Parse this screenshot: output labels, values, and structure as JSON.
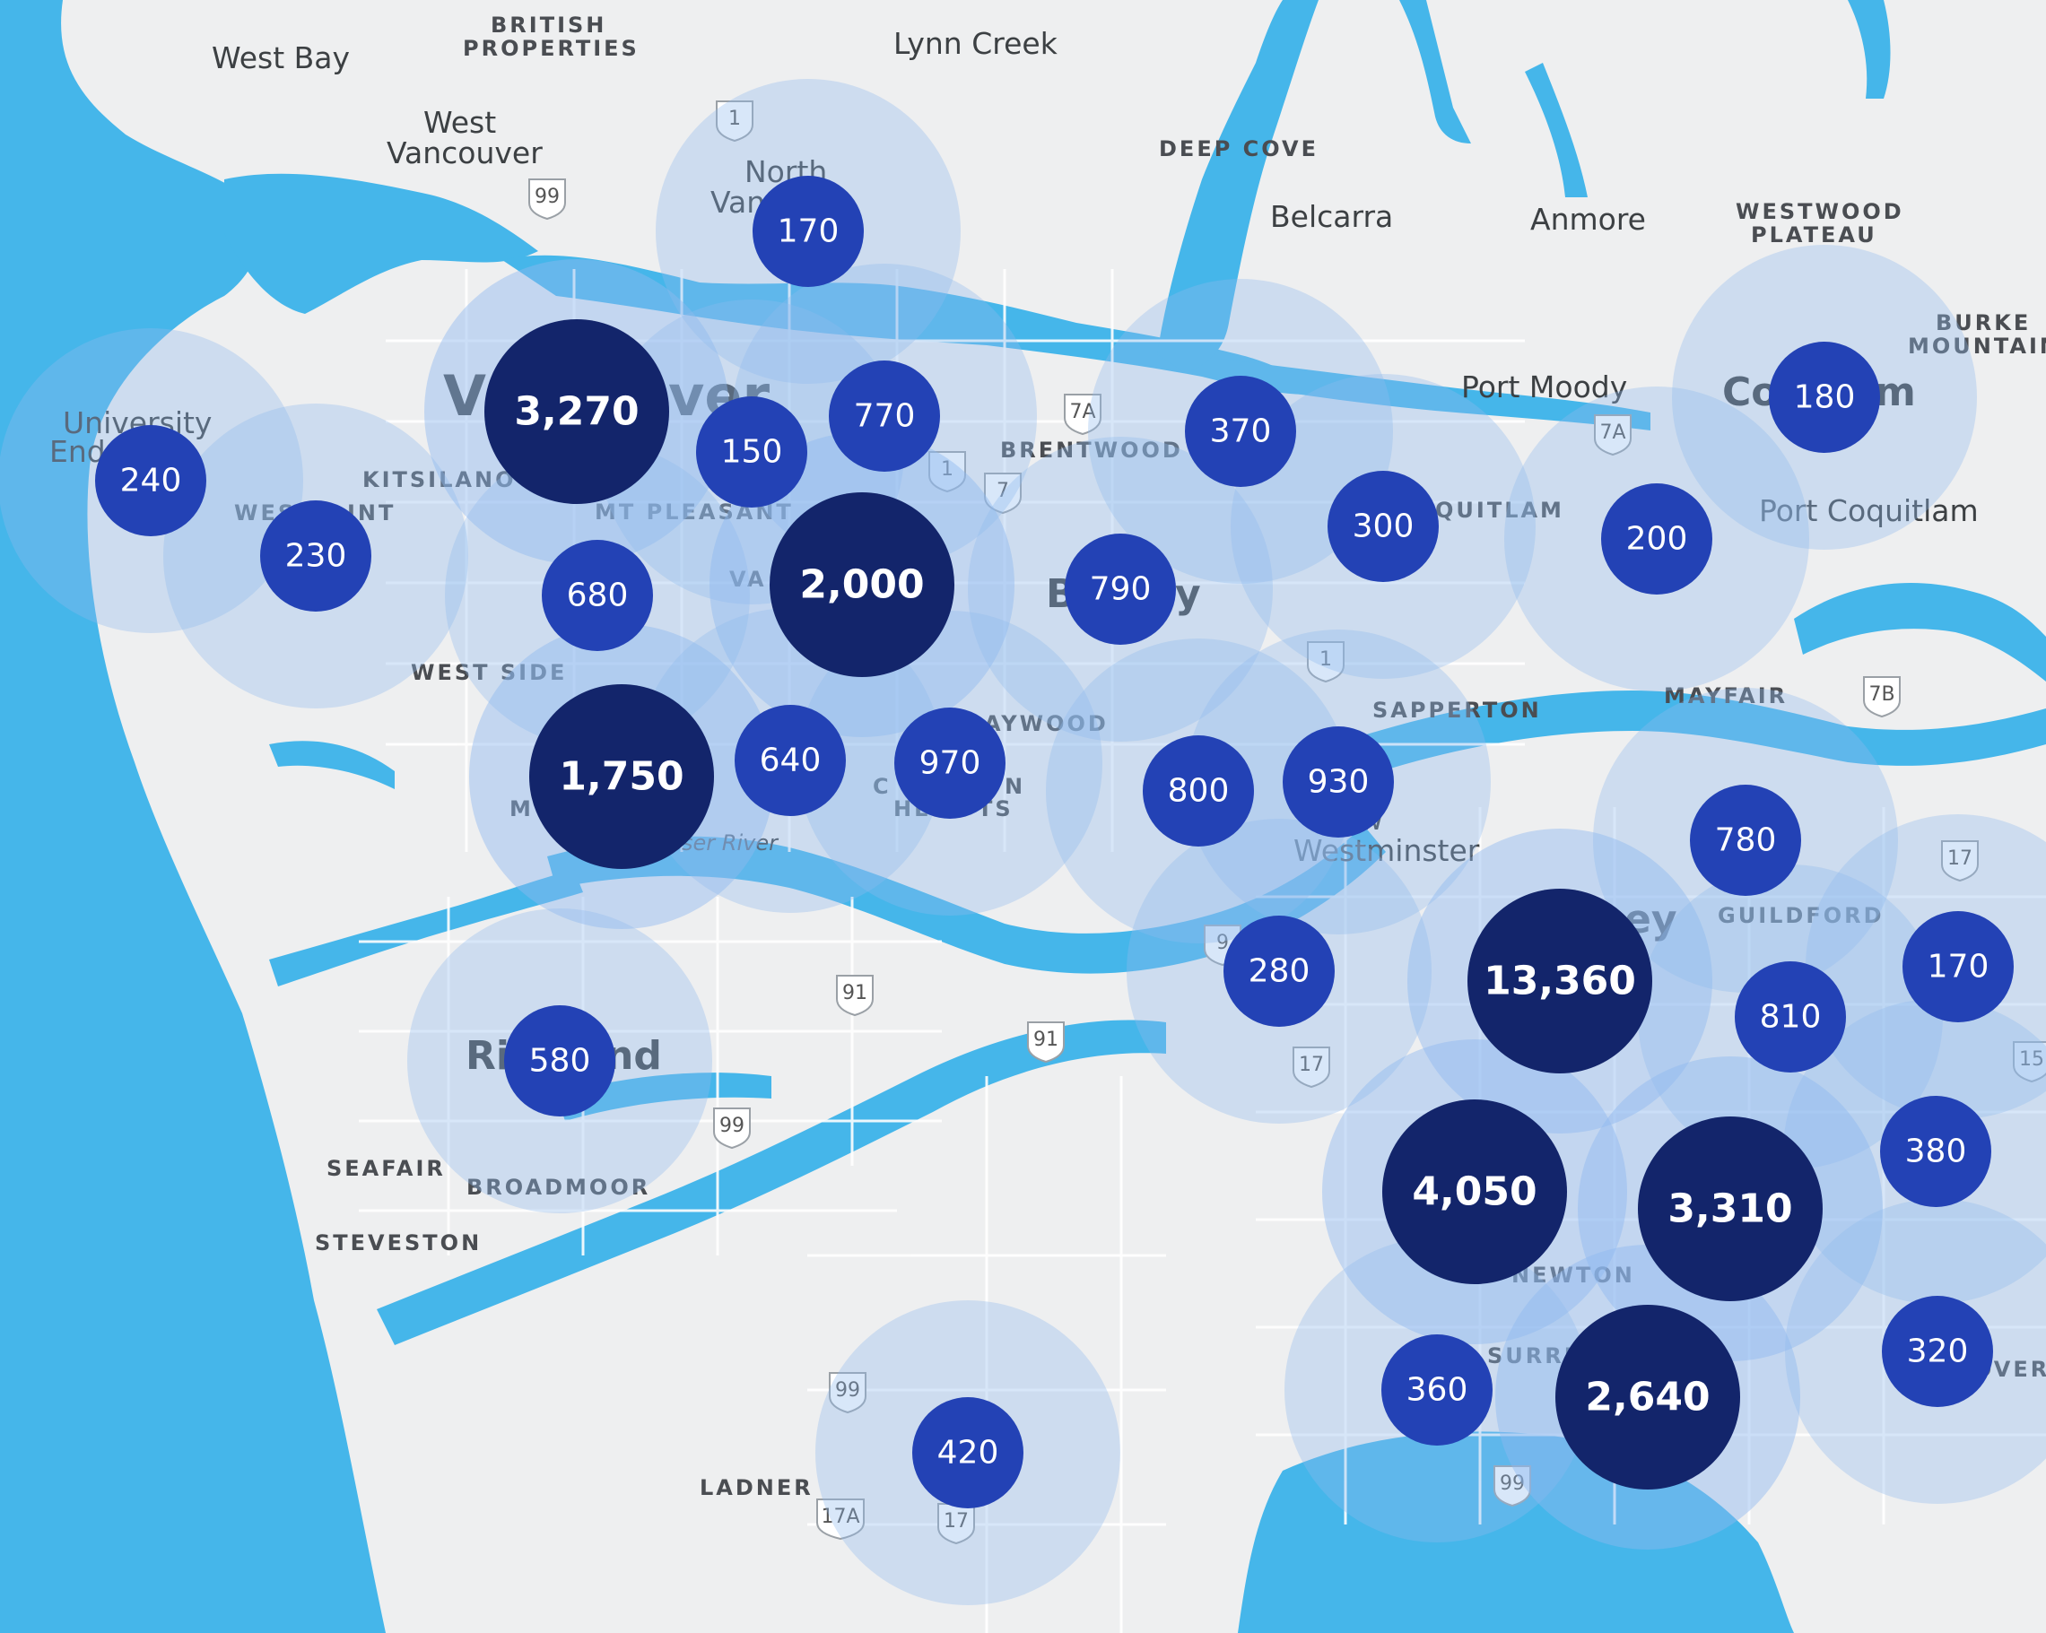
{
  "colors": {
    "land": "#eeeff0",
    "water": "#45b6ea",
    "halo": "#8fb9ef",
    "cluster_small": "#2342b5",
    "cluster_large": "#13256b",
    "text": "#ffffff"
  },
  "labels": [
    {
      "id": "west-bay",
      "text": "West Bay",
      "kind": "city"
    },
    {
      "id": "british-properties",
      "text": "BRITISH",
      "kind": "hood"
    },
    {
      "id": "british-properties-2",
      "text": "PROPERTIES",
      "kind": "hood"
    },
    {
      "id": "lynn-creek",
      "text": "Lynn Creek",
      "kind": "city"
    },
    {
      "id": "west-vancouver",
      "text": "West",
      "kind": "city"
    },
    {
      "id": "west-vancouver-2",
      "text": "Vancouver",
      "kind": "city"
    },
    {
      "id": "north-van",
      "text": "North",
      "kind": "city"
    },
    {
      "id": "north-van-2",
      "text": "Van",
      "kind": "city"
    },
    {
      "id": "deep-cove",
      "text": "DEEP COVE",
      "kind": "hood"
    },
    {
      "id": "belcarra",
      "text": "Belcarra",
      "kind": "city"
    },
    {
      "id": "anmore",
      "text": "Anmore",
      "kind": "city"
    },
    {
      "id": "westwood",
      "text": "WESTWOOD",
      "kind": "hood"
    },
    {
      "id": "westwood-2",
      "text": "PLATEAU",
      "kind": "hood"
    },
    {
      "id": "burke",
      "text": "BURKE",
      "kind": "hood"
    },
    {
      "id": "burke-2",
      "text": "MOUNTAIN",
      "kind": "hood"
    },
    {
      "id": "port-moody",
      "text": "Port Moody",
      "kind": "city"
    },
    {
      "id": "coquitlam",
      "text": "Co",
      "kind": "bigcity"
    },
    {
      "id": "coquitlam-2",
      "text": "m",
      "kind": "bigcity"
    },
    {
      "id": "port-coquitlam",
      "text": "Port Coquitlam",
      "kind": "city"
    },
    {
      "id": "quitlam",
      "text": "QUITLAM",
      "kind": "hood"
    },
    {
      "id": "university",
      "text": "University",
      "kind": "city"
    },
    {
      "id": "university-2",
      "text": "End",
      "kind": "city"
    },
    {
      "id": "vancouver",
      "text": "V",
      "kind": "bigcity"
    },
    {
      "id": "vancouver-2",
      "text": "ver",
      "kind": "bigcity"
    },
    {
      "id": "kitsilano",
      "text": "KITSILANO",
      "kind": "hood"
    },
    {
      "id": "mt-pleasant",
      "text": "MT PLEASANT",
      "kind": "hood"
    },
    {
      "id": "brentwood",
      "text": "BRENTWOOD",
      "kind": "hood"
    },
    {
      "id": "west-point",
      "text": "WES",
      "kind": "hood"
    },
    {
      "id": "west-point-2",
      "text": "INT",
      "kind": "hood"
    },
    {
      "id": "van-east",
      "text": "VA",
      "kind": "hood"
    },
    {
      "id": "west-side",
      "text": "WEST SIDE",
      "kind": "hood"
    },
    {
      "id": "burnaby",
      "text": "B",
      "kind": "bigcity"
    },
    {
      "id": "burnaby-2",
      "text": "y",
      "kind": "bigcity"
    },
    {
      "id": "maywood",
      "text": "AYWOOD",
      "kind": "hood"
    },
    {
      "id": "sapperton",
      "text": "SAPPERTON",
      "kind": "hood"
    },
    {
      "id": "mayfair",
      "text": "MAYFAIR",
      "kind": "hood"
    },
    {
      "id": "new-westminster",
      "text": "ew",
      "kind": "city"
    },
    {
      "id": "new-westminster-2",
      "text": "Westminster",
      "kind": "city"
    },
    {
      "id": "guildford",
      "text": "GUILDFORD",
      "kind": "hood"
    },
    {
      "id": "surrey",
      "text": "ey",
      "kind": "bigcity"
    },
    {
      "id": "richmond",
      "text": "Ri",
      "kind": "bigcity"
    },
    {
      "id": "richmond-2",
      "text": "nd",
      "kind": "bigcity"
    },
    {
      "id": "seafair",
      "text": "SEAFAIR",
      "kind": "hood"
    },
    {
      "id": "broadmoor",
      "text": "BROADMOOR",
      "kind": "hood"
    },
    {
      "id": "steveston",
      "text": "STEVESTON",
      "kind": "hood"
    },
    {
      "id": "newton",
      "text": "NEWTON",
      "kind": "hood"
    },
    {
      "id": "surrey-small",
      "text": "SURRE",
      "kind": "hood"
    },
    {
      "id": "ladner",
      "text": "LADNER",
      "kind": "hood"
    },
    {
      "id": "cloverdale",
      "text": "OVER",
      "kind": "hood"
    },
    {
      "id": "marpole",
      "text": "M",
      "kind": "hood"
    },
    {
      "id": "champlain",
      "text": "C",
      "kind": "hood"
    },
    {
      "id": "champlain-2",
      "text": "N",
      "kind": "hood"
    },
    {
      "id": "heights",
      "text": "HE",
      "kind": "hood"
    },
    {
      "id": "heights-2",
      "text": "TS",
      "kind": "hood"
    },
    {
      "id": "fraser-river",
      "text": "ser River",
      "kind": "water"
    }
  ],
  "shields": [
    {
      "id": "hwy-99-north",
      "text": "99"
    },
    {
      "id": "hwy-7a-brentwood",
      "text": "7A"
    },
    {
      "id": "hwy-7-brentwood",
      "text": "7"
    },
    {
      "id": "hwy-7a-port-moody",
      "text": "7A"
    },
    {
      "id": "hwy-7b",
      "text": "7B"
    },
    {
      "id": "hwy-17-guildford",
      "text": "17"
    },
    {
      "id": "hwy-15",
      "text": "15"
    },
    {
      "id": "hwy-91-a",
      "text": "91"
    },
    {
      "id": "hwy-91-b",
      "text": "91"
    },
    {
      "id": "hwy-99-richmond",
      "text": "99"
    },
    {
      "id": "hwy-17-surrey",
      "text": "17"
    },
    {
      "id": "hwy-99-ladner",
      "text": "99"
    },
    {
      "id": "hwy-17a",
      "text": "17A"
    },
    {
      "id": "hwy-17-ladner",
      "text": "17"
    },
    {
      "id": "hwy-99-surrey",
      "text": "99"
    },
    {
      "id": "hwy-9",
      "text": "9"
    },
    {
      "id": "tch-1-north",
      "text": "1"
    },
    {
      "id": "tch-1-burnaby",
      "text": "1"
    },
    {
      "id": "tch-1-sapperton",
      "text": "1"
    }
  ],
  "clusters": [
    {
      "id": "university-endowment",
      "label": "240",
      "count": 240
    },
    {
      "id": "west-point-grey",
      "label": "230",
      "count": 230
    },
    {
      "id": "downtown-vancouver",
      "label": "3,270",
      "count": 3270
    },
    {
      "id": "north-vancouver",
      "label": "170",
      "count": 170
    },
    {
      "id": "strathcona",
      "label": "150",
      "count": 150
    },
    {
      "id": "hastings",
      "label": "770",
      "count": 770
    },
    {
      "id": "fairview",
      "label": "680",
      "count": 680
    },
    {
      "id": "east-vancouver",
      "label": "2,000",
      "count": 2000
    },
    {
      "id": "kerrisdale",
      "label": "1,750",
      "count": 1750
    },
    {
      "id": "sunset",
      "label": "640",
      "count": 640
    },
    {
      "id": "champlain-heights",
      "label": "970",
      "count": 970
    },
    {
      "id": "richmond",
      "label": "580",
      "count": 580
    },
    {
      "id": "burnaby-north",
      "label": "370",
      "count": 370
    },
    {
      "id": "burnaby",
      "label": "790",
      "count": 790
    },
    {
      "id": "burquitlam",
      "label": "300",
      "count": 300
    },
    {
      "id": "south-burnaby",
      "label": "800",
      "count": 800
    },
    {
      "id": "new-westminster",
      "label": "930",
      "count": 930
    },
    {
      "id": "coquitlam-west",
      "label": "200",
      "count": 200
    },
    {
      "id": "coquitlam",
      "label": "180",
      "count": 180
    },
    {
      "id": "guildford-north",
      "label": "780",
      "count": 780
    },
    {
      "id": "queensborough",
      "label": "280",
      "count": 280
    },
    {
      "id": "surrey-city-centre",
      "label": "13,360",
      "count": 13360
    },
    {
      "id": "guildford",
      "label": "810",
      "count": 810
    },
    {
      "id": "fleetwood",
      "label": "170",
      "count": 170
    },
    {
      "id": "fraser-heights",
      "label": "380",
      "count": 380
    },
    {
      "id": "newton-west",
      "label": "4,050",
      "count": 4050
    },
    {
      "id": "newton",
      "label": "3,310",
      "count": 3310
    },
    {
      "id": "cloverdale",
      "label": "320",
      "count": 320
    },
    {
      "id": "north-delta",
      "label": "360",
      "count": 360
    },
    {
      "id": "surrey-south",
      "label": "2,640",
      "count": 2640
    },
    {
      "id": "ladner",
      "label": "420",
      "count": 420
    }
  ]
}
